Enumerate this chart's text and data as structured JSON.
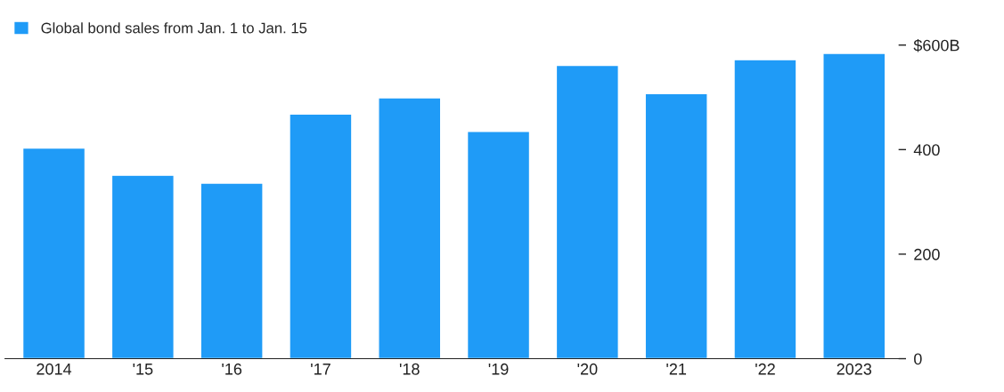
{
  "chart_data": {
    "type": "bar",
    "categories": [
      "2014",
      "'15",
      "'16",
      "'17",
      "'18",
      "'19",
      "'20",
      "'21",
      "'22",
      "2023"
    ],
    "series": [
      {
        "name": "Global bond sales from Jan. 1 to Jan. 15",
        "color": "#1f9bf7",
        "values": [
          403,
          351,
          336,
          468,
          499,
          435,
          561,
          507,
          572,
          584
        ]
      }
    ],
    "ylim": [
      0,
      600
    ],
    "yticks": [
      0,
      200,
      400,
      {
        "value": 600,
        "label": "$600B"
      }
    ],
    "legend": "top left",
    "grid": false
  }
}
